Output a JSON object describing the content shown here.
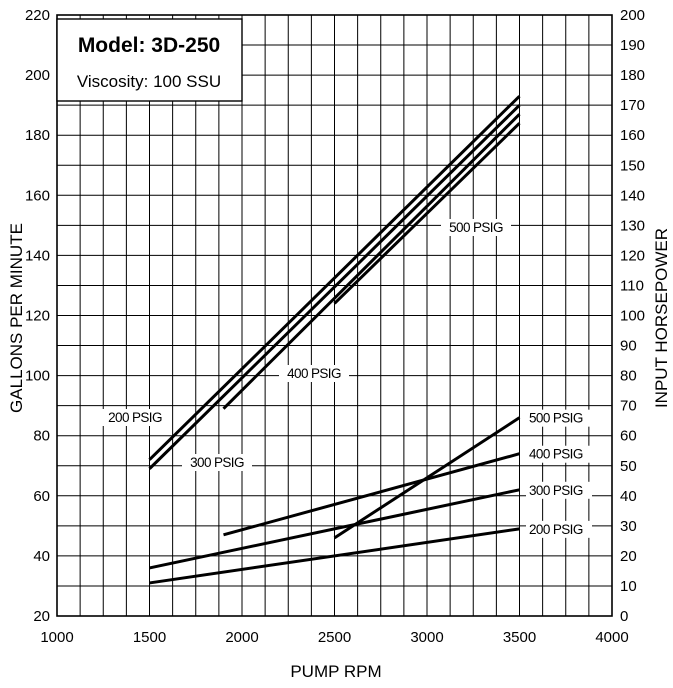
{
  "chart_data": {
    "type": "line",
    "title": "Model: 3D-250",
    "subtitle": "Viscosity: 100 SSU",
    "xlabel": "PUMP RPM",
    "ylabel": "GALLONS PER MINUTE",
    "y2label": "INPUT HORSEPOWER",
    "xlim": [
      1000,
      4000
    ],
    "ylim": [
      20,
      220
    ],
    "y2lim": [
      0,
      200
    ],
    "grid": true,
    "x_ticks": [
      "1000",
      "1500",
      "2000",
      "2500",
      "3000",
      "3500",
      "4000"
    ],
    "y_ticks": [
      "20",
      "40",
      "60",
      "80",
      "100",
      "120",
      "140",
      "160",
      "180",
      "200",
      "220"
    ],
    "y2_ticks": [
      "0",
      "10",
      "20",
      "30",
      "40",
      "50",
      "60",
      "70",
      "80",
      "90",
      "100",
      "110",
      "120",
      "130",
      "140",
      "150",
      "160",
      "170",
      "180",
      "190",
      "200"
    ],
    "flow_series": [
      {
        "label": "200 PSIG",
        "x": [
          1500,
          3500
        ],
        "y": [
          72,
          193
        ]
      },
      {
        "label": "300 PSIG",
        "x": [
          1500,
          3500
        ],
        "y": [
          69,
          190
        ]
      },
      {
        "label": "400 PSIG",
        "x": [
          1900,
          3500
        ],
        "y": [
          89,
          187
        ]
      },
      {
        "label": "500 PSIG",
        "x": [
          2500,
          3500
        ],
        "y": [
          124,
          184
        ]
      }
    ],
    "power_series": [
      {
        "label": "500 PSIG",
        "axis": "y2",
        "x": [
          2500,
          3500
        ],
        "y": [
          26,
          66
        ]
      },
      {
        "label": "400 PSIG",
        "axis": "y2",
        "x": [
          1900,
          3500
        ],
        "y": [
          27,
          54
        ]
      },
      {
        "label": "300 PSIG",
        "axis": "y2",
        "x": [
          1500,
          3500
        ],
        "y": [
          16,
          42
        ]
      },
      {
        "label": "200 PSIG",
        "axis": "y2",
        "x": [
          1500,
          3500
        ],
        "y": [
          11,
          29
        ]
      }
    ]
  }
}
